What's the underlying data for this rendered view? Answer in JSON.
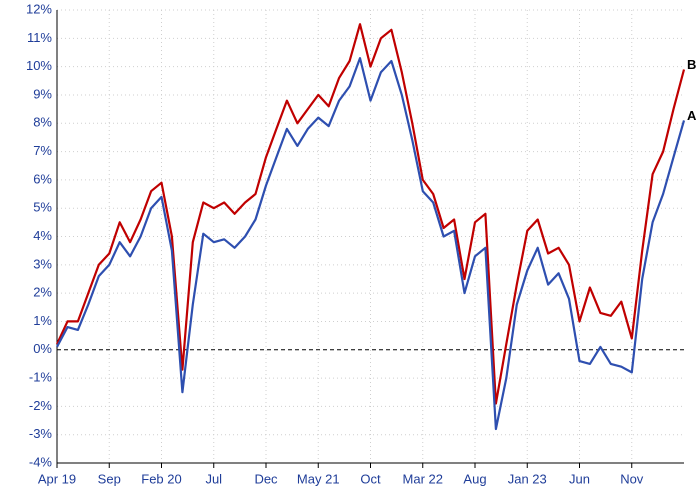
{
  "chart_data": {
    "type": "line",
    "categories": [
      "Apr 19",
      null,
      null,
      null,
      null,
      "Sep",
      null,
      null,
      null,
      null,
      "Feb 20",
      null,
      null,
      null,
      null,
      "Jul",
      null,
      null,
      null,
      null,
      "Dec",
      null,
      null,
      null,
      null,
      "May 21",
      null,
      null,
      null,
      null,
      "Oct",
      null,
      null,
      null,
      null,
      "Mar 22",
      null,
      null,
      null,
      null,
      "Aug",
      null,
      null,
      null,
      null,
      "Jan 23",
      null,
      null,
      null,
      null,
      "Jun",
      null,
      null,
      null,
      null,
      "Nov",
      null,
      null,
      null,
      null,
      null
    ],
    "series": [
      {
        "name": "B",
        "color": "#c00000",
        "values": [
          0.2,
          1.0,
          1.0,
          2.0,
          3.0,
          3.4,
          4.5,
          3.8,
          4.6,
          5.6,
          5.9,
          4.0,
          -0.7,
          3.8,
          5.2,
          5.0,
          5.2,
          4.8,
          5.2,
          5.5,
          6.8,
          7.8,
          8.8,
          8.0,
          8.5,
          9.0,
          8.6,
          9.6,
          10.2,
          11.5,
          10.0,
          11.0,
          11.3,
          9.8,
          8.0,
          6.0,
          5.5,
          4.3,
          4.6,
          2.5,
          4.5,
          4.8,
          -1.9,
          0.2,
          2.3,
          4.2,
          4.6,
          3.4,
          3.6,
          3.0,
          1.0,
          2.2,
          1.3,
          1.2,
          1.7,
          0.4,
          3.5,
          6.2,
          7.0,
          8.5,
          9.9
        ]
      },
      {
        "name": "A",
        "color": "#2e4fb0",
        "values": [
          0.1,
          0.8,
          0.7,
          1.6,
          2.6,
          3.0,
          3.8,
          3.3,
          4.0,
          5.0,
          5.4,
          3.5,
          -1.5,
          1.6,
          4.1,
          3.8,
          3.9,
          3.6,
          4.0,
          4.6,
          5.8,
          6.8,
          7.8,
          7.2,
          7.8,
          8.2,
          7.9,
          8.8,
          9.3,
          10.3,
          8.8,
          9.8,
          10.2,
          9.0,
          7.4,
          5.6,
          5.2,
          4.0,
          4.2,
          2.0,
          3.3,
          3.6,
          -2.8,
          -1.0,
          1.6,
          2.8,
          3.6,
          2.3,
          2.7,
          1.8,
          -0.4,
          -0.5,
          0.1,
          -0.5,
          -0.6,
          -0.8,
          2.5,
          4.5,
          5.5,
          6.8,
          8.1
        ]
      }
    ],
    "ylim": [
      -4,
      12
    ],
    "yticks": [
      {
        "value": -4,
        "label": "-4%"
      },
      {
        "value": -3,
        "label": "-3%"
      },
      {
        "value": -2,
        "label": "-2%"
      },
      {
        "value": -1,
        "label": "-1%"
      },
      {
        "value": 0,
        "label": "0%"
      },
      {
        "value": 1,
        "label": "1%"
      },
      {
        "value": 2,
        "label": "2%"
      },
      {
        "value": 3,
        "label": "3%"
      },
      {
        "value": 4,
        "label": "4%"
      },
      {
        "value": 5,
        "label": "5%"
      },
      {
        "value": 6,
        "label": "6%"
      },
      {
        "value": 7,
        "label": "7%"
      },
      {
        "value": 8,
        "label": "8%"
      },
      {
        "value": 9,
        "label": "9%"
      },
      {
        "value": 10,
        "label": "10%"
      },
      {
        "value": 11,
        "label": "11%"
      },
      {
        "value": 12,
        "label": "12%"
      }
    ],
    "grid": true
  }
}
